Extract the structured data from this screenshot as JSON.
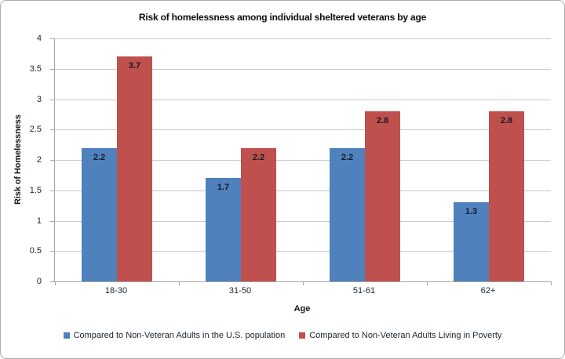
{
  "chart_data": {
    "type": "bar",
    "title": "Risk of homelessness among individual sheltered veterans by age",
    "xlabel": "Age",
    "ylabel": "Risk of Homelessness",
    "categories": [
      "18-30",
      "31-50",
      "51-61",
      "62+"
    ],
    "series": [
      {
        "name": "Compared to Non-Veteran Adults in the U.S. population",
        "color": "#4F81BD",
        "values": [
          2.2,
          1.7,
          2.2,
          1.3
        ]
      },
      {
        "name": "Compared to Non-Veteran Adults Living in Poverty",
        "color": "#C0504D",
        "values": [
          3.7,
          2.2,
          2.8,
          2.8
        ]
      }
    ],
    "ylim": [
      0,
      4
    ],
    "ytick_step": 0.5,
    "grid": true,
    "legend_position": "bottom",
    "data_labels": true
  }
}
